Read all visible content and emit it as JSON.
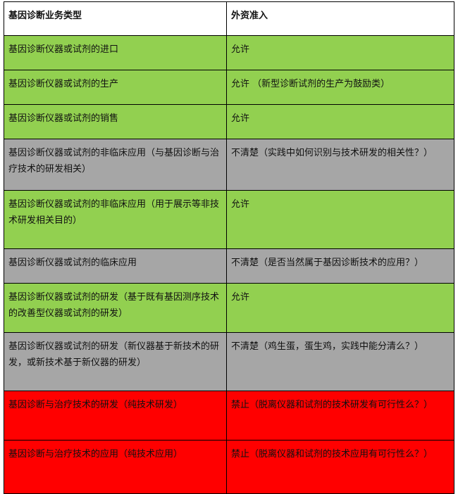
{
  "colors": {
    "allowed": "#92d050",
    "unclear": "#a6a6a6",
    "forbidden": "#ff0000"
  },
  "header": {
    "col1": "基因诊断业务类型",
    "col2": "外资准入"
  },
  "rows": [
    {
      "type": "基因诊断仪器或试剂的进口",
      "access": "允许",
      "status": "allowed"
    },
    {
      "type": "基因诊断仪器或试剂的生产",
      "access": "允许 （新型诊断试剂的生产为鼓励类）",
      "status": "allowed"
    },
    {
      "type": "基因诊断仪器或试剂的销售",
      "access": "允许",
      "status": "allowed"
    },
    {
      "type": "基因诊断仪器或试剂的非临床应用（与基因诊断与治疗技术的研发相关）",
      "access": "不清楚（实践中如何识别与技术研发的相关性？）",
      "status": "unclear"
    },
    {
      "type": "基因诊断仪器或试剂的非临床应用（用于展示等非技术研发相关目的）",
      "access": "允许",
      "status": "allowed"
    },
    {
      "type": "基因诊断仪器或试剂的临床应用",
      "access": "不清楚（是否当然属于基因诊断技术的应用？）",
      "status": "unclear"
    },
    {
      "type": "基因诊断仪器或试剂的研发（基于既有基因测序技术的改善型仪器或试剂的研发）",
      "access": "允许",
      "status": "allowed"
    },
    {
      "type": "基因诊断仪器或试剂的研发（新仪器基于新技术的研发，或新技术基于新仪器的研发）",
      "access": "不清楚（鸡生蛋，蛋生鸡，实践中能分清么？）",
      "status": "unclear"
    },
    {
      "type": "基因诊断与治疗技术的研发（纯技术研发）",
      "access": "禁止（脱离仪器和试剂的技术研发有可行性么？）",
      "status": "forbidden"
    },
    {
      "type": "基因诊断与治疗技术的应用（纯技术应用）",
      "access": "禁止（脱离仪器和试剂的技术应用有可行性么？）",
      "status": "forbidden"
    }
  ]
}
